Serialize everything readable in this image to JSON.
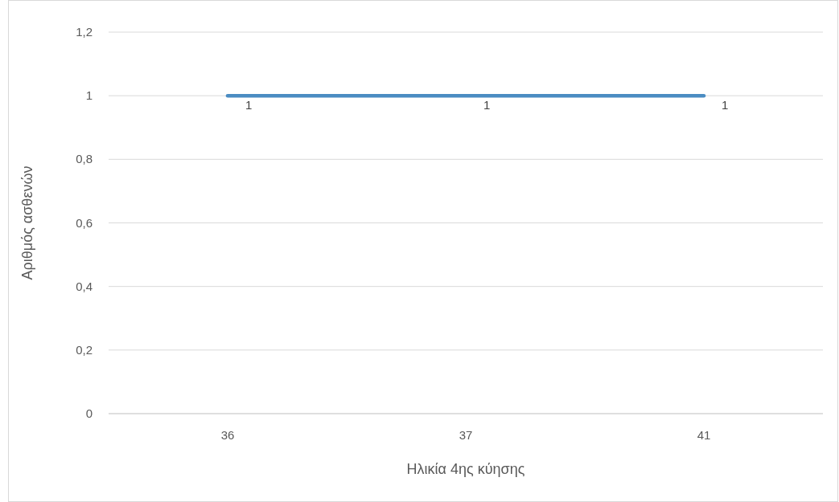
{
  "chart_data": {
    "type": "line",
    "xlabel": "Ηλικία 4ης κύησης",
    "ylabel": "Αριθμός ασθενών",
    "categories": [
      "36",
      "37",
      "41"
    ],
    "series": [
      {
        "color": "#4a8cc2",
        "values": [
          1,
          1,
          1
        ]
      }
    ],
    "ylim": [
      0,
      1.2
    ],
    "yticks": [
      0,
      {
        "value": 0.2,
        "label": "0,2"
      },
      {
        "value": 0.4,
        "label": "0,4"
      },
      {
        "value": 0.6,
        "label": "0,6"
      },
      {
        "value": 0.8,
        "label": "0,8"
      },
      1,
      {
        "value": 1.2,
        "label": "1,2"
      }
    ],
    "grid": "y",
    "data_labels": true,
    "marker": "none",
    "line_style": "solid"
  }
}
